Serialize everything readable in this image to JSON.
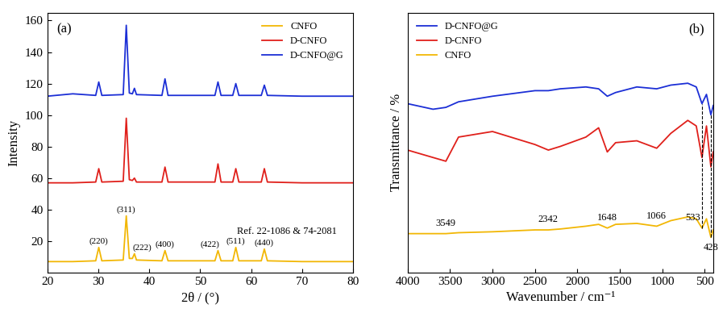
{
  "chart_data": [
    {
      "type": "line",
      "panel": "(a)",
      "x_label": "2θ / (°)",
      "y_label": "Intensity",
      "xlim": [
        20,
        80
      ],
      "xticks": [
        20,
        30,
        40,
        50,
        60,
        70,
        80
      ],
      "ylim": [
        0,
        165
      ],
      "yticks": [
        20,
        40,
        60,
        80,
        100,
        120,
        140,
        160
      ],
      "legend": "upper right",
      "x": [
        20,
        25,
        29.5,
        30.1,
        30.7,
        34.9,
        35.5,
        36.1,
        36.7,
        37.1,
        37.5,
        42.5,
        43.1,
        43.7,
        52.9,
        53.5,
        54.1,
        56.4,
        57.0,
        57.6,
        62.0,
        62.6,
        63.2,
        70,
        80
      ],
      "series": [
        {
          "name": "CNFO",
          "color": "#f2b705",
          "values": [
            7,
            7,
            7.5,
            16,
            7.5,
            8,
            36,
            9,
            9,
            12,
            8,
            7.5,
            14,
            7.5,
            7.5,
            14,
            7.5,
            7.5,
            16,
            7.5,
            7.5,
            15,
            7.5,
            7,
            7
          ]
        },
        {
          "name": "D-CNFO",
          "color": "#e0201b",
          "values": [
            57,
            57,
            57.5,
            66,
            57.5,
            58,
            98,
            59,
            58.5,
            60,
            57.5,
            57.5,
            67,
            57.5,
            57.5,
            69,
            57.5,
            57.5,
            66,
            57.5,
            57.5,
            66,
            57.5,
            57,
            57
          ]
        },
        {
          "name": "D-CNFO@G",
          "color": "#1c2fd6",
          "values": [
            112,
            113.5,
            112.5,
            121,
            112.5,
            113,
            157,
            114,
            113.5,
            117,
            113,
            112.5,
            123,
            112.5,
            112.5,
            121,
            112.5,
            112.5,
            120,
            112.5,
            112.5,
            119,
            112.5,
            112,
            112
          ]
        }
      ],
      "peak_labels": [
        {
          "text": "(220)",
          "x": 30.1
        },
        {
          "text": "(311)",
          "x": 35.5
        },
        {
          "text": "(222)",
          "x": 37.1
        },
        {
          "text": "(400)",
          "x": 43.1
        },
        {
          "text": "(422)",
          "x": 53.5
        },
        {
          "text": "(511)",
          "x": 57.0
        },
        {
          "text": "(440)",
          "x": 62.6
        }
      ],
      "annotation": "Ref. 22-1086 & 74-2081"
    },
    {
      "type": "line",
      "panel": "(b)",
      "x_label": "Wavenumber / cm⁻¹",
      "y_label": "Transmittance / %",
      "xlim": [
        4000,
        400
      ],
      "xticks": [
        4000,
        3500,
        3000,
        2500,
        2000,
        1500,
        1000,
        500
      ],
      "ylim": [
        -15,
        125
      ],
      "tick_labels": "x",
      "legend": "upper left",
      "x": [
        4000,
        3700,
        3549,
        3400,
        3000,
        2500,
        2342,
        2200,
        1900,
        1750,
        1648,
        1550,
        1300,
        1066,
        900,
        700,
        600,
        533,
        480,
        428,
        400
      ],
      "series": [
        {
          "name": "D-CNFO@G",
          "color": "#1c2fd6",
          "values": [
            76,
            73,
            74,
            77,
            80,
            83,
            83,
            84,
            85,
            84,
            80,
            82,
            85,
            84,
            86,
            87,
            85,
            76,
            81,
            70,
            75
          ]
        },
        {
          "name": "D-CNFO",
          "color": "#e0201b",
          "values": [
            51,
            47,
            45,
            58,
            61,
            54,
            51,
            53,
            58,
            63,
            50,
            55,
            56,
            52,
            60,
            67,
            64,
            47,
            64,
            42,
            50
          ]
        },
        {
          "name": "CNFO",
          "color": "#f2b705",
          "values": [
            6,
            6,
            6,
            6.5,
            7,
            8,
            8,
            8.5,
            10,
            11,
            9,
            11,
            11.5,
            10,
            13,
            15,
            14,
            9,
            14,
            4,
            8
          ]
        }
      ],
      "peak_labels": [
        3549,
        2342,
        1648,
        1066,
        533,
        428
      ]
    }
  ]
}
